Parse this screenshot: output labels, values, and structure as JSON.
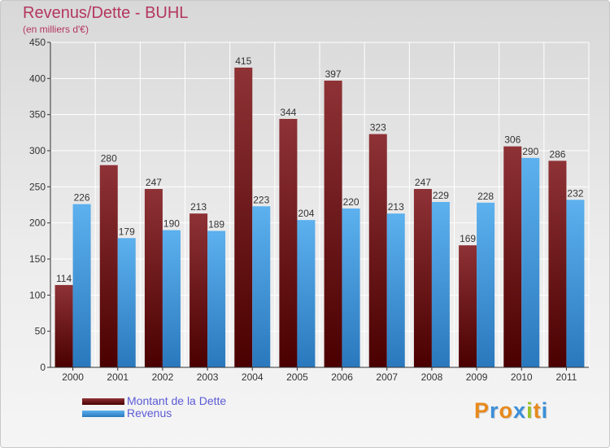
{
  "title": "Revenus/Dette - BUHL",
  "subtitle": "(en milliers d'€)",
  "colors": {
    "dette": "#6b0f0f",
    "revenus": "#3f93db",
    "title": "#b5365f",
    "legend_text": "#5b5bd6"
  },
  "logo": {
    "text": "Proxiti",
    "letters": [
      "P",
      "r",
      "o",
      "x",
      "i",
      "t",
      "i"
    ],
    "colors": [
      "#e8891c",
      "#3b8fd8",
      "#e8891c",
      "#3b8fd8",
      "#9ac226",
      "#e8891c",
      "#3b8fd8"
    ]
  },
  "chart_data": {
    "type": "bar",
    "title": "Revenus/Dette - BUHL",
    "ylabel": "(en milliers d'€)",
    "xlabel": "",
    "categories": [
      "2000",
      "2001",
      "2002",
      "2003",
      "2004",
      "2005",
      "2006",
      "2007",
      "2008",
      "2009",
      "2010",
      "2011"
    ],
    "series": [
      {
        "name": "Montant de la Dette",
        "values": [
          114,
          280,
          247,
          213,
          415,
          344,
          397,
          323,
          247,
          169,
          306,
          286
        ]
      },
      {
        "name": "Revenus",
        "values": [
          226,
          179,
          190,
          189,
          223,
          204,
          220,
          213,
          229,
          228,
          290,
          232
        ]
      }
    ],
    "ylim": [
      0,
      450
    ],
    "yticks": [
      0,
      50,
      100,
      150,
      200,
      250,
      300,
      350,
      400,
      450
    ],
    "grid": true,
    "legend_position": "bottom-left"
  }
}
